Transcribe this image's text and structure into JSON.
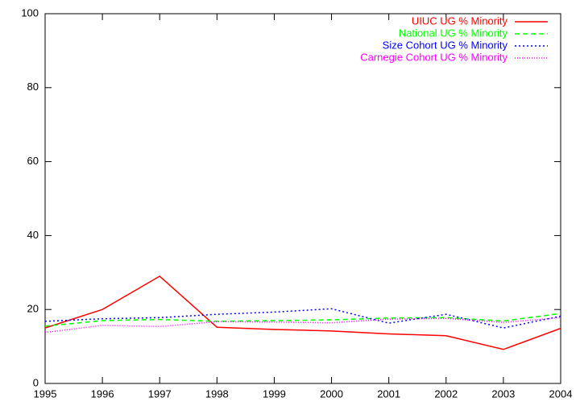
{
  "chart_data": {
    "type": "line",
    "x": [
      1995,
      1996,
      1997,
      1998,
      1999,
      2000,
      2001,
      2002,
      2003,
      2004
    ],
    "series": [
      {
        "name": "UIUC UG % Minority",
        "color": "#ff0000",
        "dash": "solid",
        "values": [
          15,
          20,
          29,
          15.2,
          14.6,
          14.2,
          13.4,
          12.9,
          9.2,
          14.9
        ]
      },
      {
        "name": "National UG % Minority",
        "color": "#00ff00",
        "dash": "dashed",
        "values": [
          15.5,
          17,
          17.3,
          16.8,
          17,
          17.2,
          17.7,
          17.8,
          16.9,
          18.9
        ]
      },
      {
        "name": "Size Cohort UG % Minority",
        "color": "#0000ff",
        "dash": "dotted",
        "values": [
          16.8,
          17.5,
          17.8,
          18.7,
          19.3,
          20.2,
          16.3,
          18.7,
          15,
          18.2
        ]
      },
      {
        "name": "Carnegie Cohort UG % Minority",
        "color": "#ff00ff",
        "dash": "fine-dotted",
        "values": [
          13.8,
          15.7,
          15.4,
          16.7,
          16.6,
          16.4,
          17.4,
          17.6,
          16.5,
          17.8
        ]
      }
    ],
    "xlim": [
      1995,
      2004
    ],
    "xticks": [
      1995,
      1996,
      1997,
      1998,
      1999,
      2000,
      2001,
      2002,
      2003,
      2004
    ],
    "ylim": [
      0,
      100
    ],
    "yticks": [
      0,
      20,
      40,
      60,
      80,
      100
    ],
    "legend": "top-right"
  }
}
